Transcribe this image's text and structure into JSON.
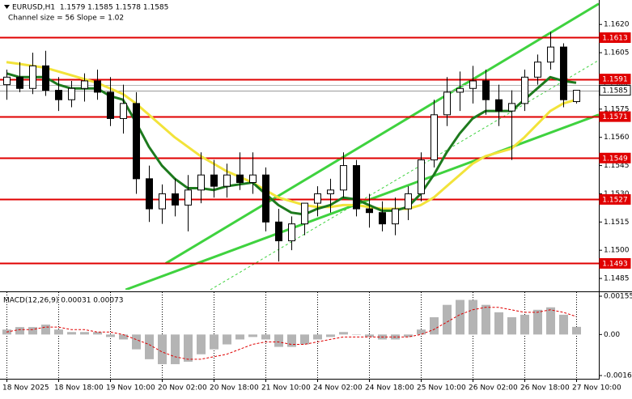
{
  "chart_data": [
    {
      "type": "candlestick",
      "title": "EURUSD,H1  1.1579 1.1585 1.1578 1.1585",
      "subtitle": "Channel size = 56 Slope = 1.02",
      "categories": [
        "18 Nov 2025",
        null,
        null,
        null,
        "18 Nov 18:00",
        null,
        null,
        null,
        "19 Nov 10:00",
        null,
        null,
        null,
        "20 Nov 02:00",
        null,
        null,
        null,
        "20 Nov 18:00",
        null,
        null,
        null,
        "21 Nov 10:00",
        null,
        null,
        null,
        "24 Nov 02:00",
        null,
        null,
        null,
        "24 Nov 18:00",
        null,
        null,
        null,
        "25 Nov 10:00",
        null,
        null,
        null,
        "26 Nov 02:00",
        null,
        null,
        null,
        "26 Nov 18:00",
        null,
        null,
        null,
        "27 Nov 10:00"
      ],
      "open": [
        1.1588,
        1.1592,
        1.1586,
        1.1598,
        1.1585,
        1.158,
        1.1586,
        1.159,
        1.1584,
        1.157,
        1.1578,
        1.1538,
        1.1522,
        1.153,
        1.1524,
        1.1532,
        1.154,
        1.1534,
        1.154,
        1.1536,
        1.154,
        1.1515,
        1.1505,
        1.1514,
        1.1525,
        1.153,
        1.1532,
        1.1545,
        1.1522,
        1.152,
        1.1514,
        1.1522,
        1.153,
        1.1548,
        1.1572,
        1.1584,
        1.1586,
        1.159,
        1.158,
        1.1574,
        1.1578,
        1.1592,
        1.16,
        1.1608,
        1.1579
      ],
      "high": [
        1.1596,
        1.16,
        1.1605,
        1.1606,
        1.1592,
        1.159,
        1.1594,
        1.1596,
        1.1592,
        1.1588,
        1.1584,
        1.1545,
        1.1535,
        1.1538,
        1.154,
        1.1552,
        1.1548,
        1.1546,
        1.1552,
        1.1552,
        1.1544,
        1.1522,
        1.1518,
        1.1525,
        1.1534,
        1.1538,
        1.1552,
        1.1548,
        1.153,
        1.1526,
        1.1528,
        1.1534,
        1.1552,
        1.158,
        1.1592,
        1.1595,
        1.1598,
        1.1596,
        1.1588,
        1.1585,
        1.1596,
        1.1604,
        1.1616,
        1.161,
        1.1585
      ],
      "low": [
        1.158,
        1.1584,
        1.1583,
        1.1582,
        1.1574,
        1.1576,
        1.1579,
        1.158,
        1.1566,
        1.1562,
        1.153,
        1.1515,
        1.1514,
        1.1518,
        1.151,
        1.1525,
        1.1528,
        1.1528,
        1.1532,
        1.153,
        1.151,
        1.1494,
        1.15,
        1.1508,
        1.1518,
        1.152,
        1.1528,
        1.1518,
        1.1512,
        1.151,
        1.1508,
        1.1516,
        1.1526,
        1.1544,
        1.1566,
        1.1574,
        1.1578,
        1.1572,
        1.1566,
        1.1548,
        1.1574,
        1.1588,
        1.1596,
        1.1576,
        1.1578
      ],
      "close": [
        1.1592,
        1.1586,
        1.1598,
        1.1585,
        1.158,
        1.1586,
        1.159,
        1.1584,
        1.157,
        1.1578,
        1.1538,
        1.1522,
        1.153,
        1.1524,
        1.1532,
        1.154,
        1.1534,
        1.154,
        1.1536,
        1.154,
        1.1515,
        1.1505,
        1.1514,
        1.1525,
        1.153,
        1.1532,
        1.1545,
        1.1522,
        1.152,
        1.1514,
        1.1522,
        1.153,
        1.1548,
        1.1572,
        1.1584,
        1.1586,
        1.159,
        1.158,
        1.1574,
        1.1578,
        1.1592,
        1.16,
        1.1608,
        1.158,
        1.1585
      ],
      "up_color": "#ffffff",
      "down_color": "#000000",
      "series": [
        {
          "color": "#f2e33a",
          "values": [
            1.16,
            1.1599,
            1.1598,
            1.1597,
            1.1595,
            1.1593,
            1.1591,
            1.1589,
            1.1586,
            1.1583,
            1.1578,
            1.1572,
            1.1566,
            1.156,
            1.1555,
            1.155,
            1.1546,
            1.1542,
            1.1539,
            1.1536,
            1.1532,
            1.1528,
            1.1526,
            1.1524,
            1.1523,
            1.1523,
            1.1524,
            1.1524,
            1.1523,
            1.1522,
            1.1522,
            1.1522,
            1.1524,
            1.1528,
            1.1534,
            1.154,
            1.1546,
            1.155,
            1.1552,
            1.1554,
            1.156,
            1.1567,
            1.1574,
            1.1578,
            1.158
          ]
        },
        {
          "color": "#1d7a1d",
          "values": [
            1.1594,
            1.1592,
            1.1592,
            1.1592,
            1.1588,
            1.1586,
            1.1586,
            1.1586,
            1.1582,
            1.158,
            1.1568,
            1.1555,
            1.1545,
            1.1538,
            1.1533,
            1.1533,
            1.1532,
            1.1534,
            1.1535,
            1.1536,
            1.153,
            1.1524,
            1.152,
            1.1519,
            1.1522,
            1.1524,
            1.1528,
            1.1527,
            1.1524,
            1.1521,
            1.1521,
            1.1523,
            1.153,
            1.154,
            1.1552,
            1.1562,
            1.157,
            1.1574,
            1.1574,
            1.1574,
            1.158,
            1.1586,
            1.1592,
            1.159,
            1.1589
          ]
        }
      ],
      "channel": [
        {
          "x": [
            9.2,
            45.75
          ],
          "y": [
            1.1479,
            1.1572
          ],
          "color": "#3fd23f",
          "dashed": false
        },
        {
          "x": [
            12.3,
            45.75
          ],
          "y": [
            1.1493,
            1.1631
          ],
          "color": "#3fd23f",
          "dashed": false
        },
        {
          "x": [
            15.75,
            45.75
          ],
          "y": [
            1.1479,
            1.1601
          ],
          "color": "#3fd23f",
          "dashed": true
        }
      ],
      "levels": [
        {
          "value": 1.1613,
          "color": "#e00000",
          "text_color": "#ffffff"
        },
        {
          "value": 1.1588,
          "color": "#b4b4b4",
          "text_color": "#333333"
        },
        {
          "value": 1.1591,
          "color": "#e00000",
          "text_color": "#ffffff"
        },
        {
          "value": 1.1585,
          "color": "#ffffff",
          "text_color": "#000000"
        },
        {
          "value": 1.1571,
          "color": "#e00000",
          "text_color": "#ffffff"
        },
        {
          "value": 1.1549,
          "color": "#e00000",
          "text_color": "#ffffff"
        },
        {
          "value": 1.1527,
          "color": "#e00000",
          "text_color": "#ffffff"
        },
        {
          "value": 1.1493,
          "color": "#e00000",
          "text_color": "#ffffff"
        }
      ],
      "ylim": [
        1.1479,
        1.1633
      ],
      "yticks": [
        {
          "value": 1.162,
          "label": "1.1620"
        },
        1.1605,
        {
          "value": 1.159,
          "label": "1.1590"
        },
        1.1575,
        {
          "value": 1.156,
          "label": "1.1560"
        },
        1.1545,
        {
          "value": 1.153,
          "label": "1.1530"
        },
        1.1515,
        {
          "value": 1.15,
          "label": "1.1500"
        },
        1.1485
      ]
    },
    {
      "type": "macd",
      "title": "MACD(12,26,9) 0.00031 0.00073",
      "hist_color": "#b4b4b4",
      "signal_color": "#e00000",
      "values": [
        0.0002,
        0.0003,
        0.0003,
        0.0004,
        0.0002,
        0.0001,
        0.0001,
        0.0001,
        -0.0001,
        -0.0002,
        -0.0006,
        -0.001,
        -0.0012,
        -0.0012,
        -0.0011,
        -0.0008,
        -0.0006,
        -0.0004,
        -0.0002,
        -0.0001,
        -0.0002,
        -0.0005,
        -0.0005,
        -0.0004,
        -0.0002,
        -0.0001,
        0.0001,
        0.0,
        -0.0001,
        -0.0002,
        -0.0002,
        -0.0001,
        0.0002,
        0.0007,
        0.0012,
        0.0014,
        0.0014,
        0.0012,
        0.0009,
        0.0007,
        0.0008,
        0.001,
        0.0011,
        0.0008,
        0.00031
      ],
      "signal": [
        0.0001,
        0.0002,
        0.0002,
        0.0003,
        0.0003,
        0.0002,
        0.0002,
        0.0001,
        0.0001,
        0.0,
        -0.0002,
        -0.0004,
        -0.0007,
        -0.0009,
        -0.001,
        -0.001,
        -0.0009,
        -0.0008,
        -0.0006,
        -0.0004,
        -0.0003,
        -0.0003,
        -0.0004,
        -0.0004,
        -0.0003,
        -0.0002,
        -0.0001,
        -0.0001,
        -0.0001,
        -0.0001,
        -0.0001,
        -0.0001,
        0.0,
        0.0002,
        0.0005,
        0.0008,
        0.001,
        0.0011,
        0.0011,
        0.001,
        0.0009,
        0.0009,
        0.001,
        0.0009,
        0.00073
      ],
      "ylim": [
        -0.00166,
        0.00155
      ],
      "yticks": [
        0.00155,
        {
          "value": 0,
          "label": "0.00"
        },
        -0.00166
      ]
    }
  ]
}
